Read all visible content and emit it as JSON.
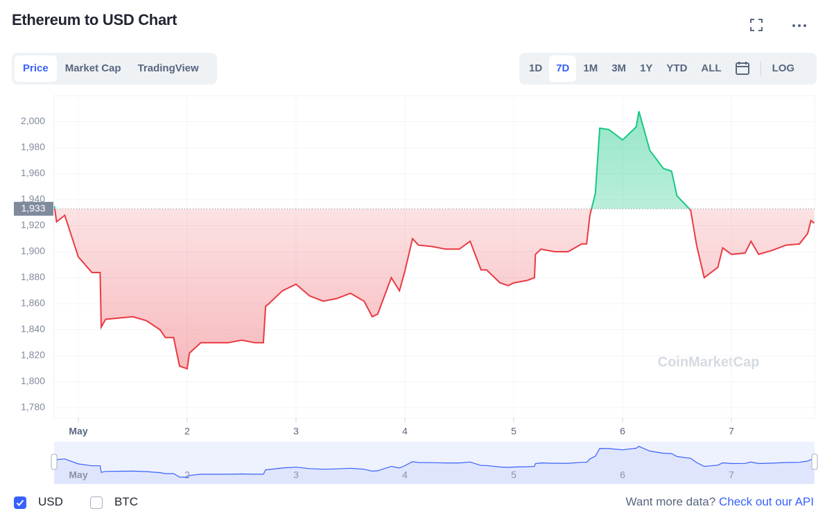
{
  "title": "Ethereum to USD Chart",
  "tabs": [
    "Price",
    "Market Cap",
    "TradingView"
  ],
  "active_tab": 0,
  "ranges": [
    "1D",
    "7D",
    "1M",
    "3M",
    "1Y",
    "YTD",
    "ALL"
  ],
  "active_range": 1,
  "log_button": "LOG",
  "watermark": "CoinMarketCap",
  "chart_data": {
    "type": "line",
    "x": [
      0.78,
      0.8,
      0.875,
      1.0,
      1.125,
      1.2,
      1.21,
      1.25,
      1.375,
      1.5,
      1.625,
      1.75,
      1.8,
      1.875,
      1.93,
      2.0,
      2.02,
      2.125,
      2.25,
      2.375,
      2.5,
      2.625,
      2.7,
      2.72,
      2.75,
      2.875,
      3.0,
      3.125,
      3.25,
      3.375,
      3.5,
      3.625,
      3.7,
      3.75,
      3.875,
      3.95,
      4.0,
      4.07,
      4.125,
      4.25,
      4.375,
      4.5,
      4.6,
      4.7,
      4.75,
      4.875,
      4.95,
      5.0,
      5.125,
      5.19,
      5.2,
      5.25,
      5.375,
      5.5,
      5.625,
      5.67,
      5.7,
      5.75,
      5.79,
      5.875,
      6.0,
      6.125,
      6.15,
      6.25,
      6.375,
      6.45,
      6.5,
      6.625,
      6.68,
      6.75,
      6.875,
      6.92,
      7.0,
      7.125,
      7.18,
      7.25,
      7.375,
      7.5,
      7.625,
      7.7,
      7.73,
      7.76
    ],
    "values": [
      1935,
      1923,
      1928,
      1896,
      1884,
      1884,
      1842,
      1848,
      1849,
      1850,
      1847,
      1840,
      1834,
      1834,
      1812,
      1810,
      1822,
      1830,
      1830,
      1830,
      1832,
      1830,
      1830,
      1858,
      1860,
      1870,
      1875,
      1866,
      1862,
      1864,
      1868,
      1862,
      1850,
      1852,
      1880,
      1870,
      1885,
      1910,
      1905,
      1904,
      1902,
      1902,
      1908,
      1886,
      1886,
      1876,
      1874,
      1876,
      1878,
      1880,
      1898,
      1902,
      1900,
      1900,
      1906,
      1906,
      1928,
      1945,
      1995,
      1994,
      1986,
      1996,
      2008,
      1978,
      1964,
      1962,
      1943,
      1932,
      1905,
      1880,
      1888,
      1903,
      1898,
      1899,
      1908,
      1898,
      1901,
      1905,
      1906,
      1914,
      1924,
      1922
    ],
    "up_color": "#16c784",
    "down_color": "#ea3943",
    "reference": {
      "value": 1933,
      "label": "1,933"
    },
    "xlim": [
      0.777,
      7.764
    ],
    "xticks": [
      {
        "value": 1,
        "label": "May"
      },
      2,
      3,
      4,
      5,
      6,
      7
    ],
    "ylim": [
      1772,
      2020
    ],
    "yticks": [
      {
        "value": 1780,
        "label": "1,780"
      },
      {
        "value": 1800,
        "label": "1,800"
      },
      {
        "value": 1820,
        "label": "1,820"
      },
      {
        "value": 1840,
        "label": "1,840"
      },
      {
        "value": 1860,
        "label": "1,860"
      },
      {
        "value": 1880,
        "label": "1,880"
      },
      {
        "value": 1900,
        "label": "1,900"
      },
      {
        "value": 1920,
        "label": "1,920"
      },
      {
        "value": 1940,
        "label": "1,940"
      },
      {
        "value": 1960,
        "label": "1,960"
      },
      {
        "value": 1980,
        "label": "1,980"
      },
      {
        "value": 2000,
        "label": "2,000"
      }
    ],
    "grid": true
  },
  "currencies": [
    {
      "label": "USD",
      "checked": true
    },
    {
      "label": "BTC",
      "checked": false
    }
  ],
  "more_data": "Want more data?",
  "api_link": "Check out our API"
}
